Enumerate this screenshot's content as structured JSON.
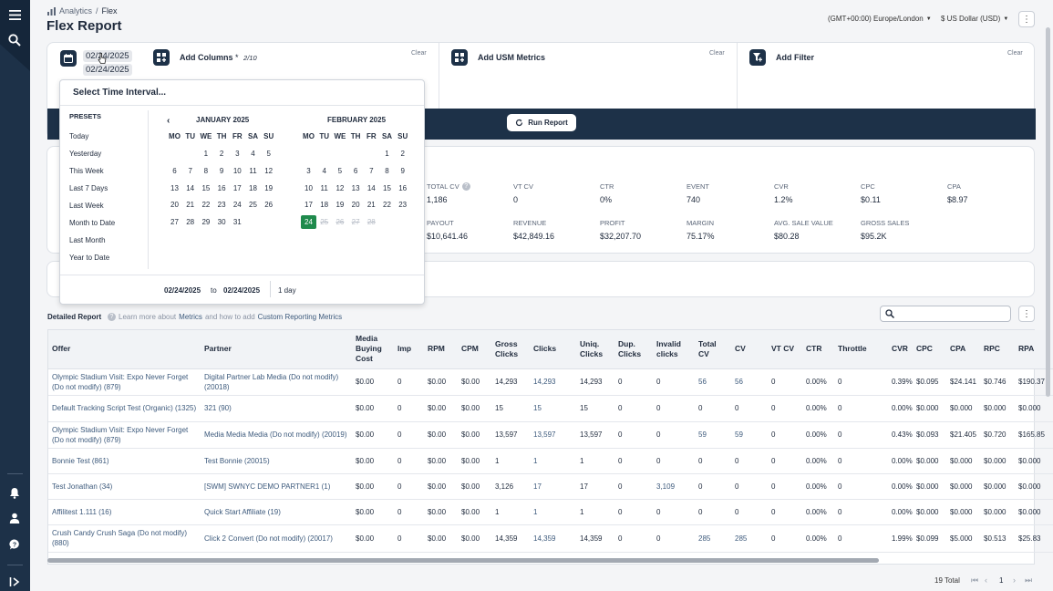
{
  "sidebar": {
    "icons": [
      "menu-icon",
      "search-icon",
      "bell-icon",
      "user-icon",
      "help-icon",
      "expand-icon"
    ]
  },
  "header": {
    "breadcrumb": [
      "Analytics",
      "Flex"
    ],
    "title": "Flex Report",
    "timezone": "(GMT+00:00) Europe/London",
    "currency": "$ US Dollar (USD)"
  },
  "config": {
    "date_start": "02/24/2025",
    "date_end": "02/24/2025",
    "add_columns": "Add Columns",
    "add_columns_req": "*",
    "add_columns_count": "2/10",
    "add_usm": "Add USM Metrics",
    "add_filter": "Add Filter",
    "clear": "Clear",
    "run_report": "Run Report"
  },
  "metrics": {
    "row1": [
      {
        "label": "TOTAL CV",
        "value": "1,186",
        "help": "?"
      },
      {
        "label": "VT CV",
        "value": "0"
      },
      {
        "label": "CTR",
        "value": "0%"
      },
      {
        "label": "EVENT",
        "value": "740"
      },
      {
        "label": "CVR",
        "value": "1.2%"
      },
      {
        "label": "CPC",
        "value": "$0.11"
      },
      {
        "label": "CPA",
        "value": "$8.97"
      }
    ],
    "row2": [
      {
        "label": "PAYOUT",
        "value": "$10,641.46"
      },
      {
        "label": "REVENUE",
        "value": "$42,849.16"
      },
      {
        "label": "PROFIT",
        "value": "$32,207.70"
      },
      {
        "label": "MARGIN",
        "value": "75.17%"
      },
      {
        "label": "AVG. SALE VALUE",
        "value": "$80.28"
      },
      {
        "label": "GROSS SALES",
        "value": "$95.2K"
      }
    ]
  },
  "report": {
    "title": "Detailed Report",
    "help_prefix": "Learn more about",
    "help_link1": "Metrics",
    "help_middle": "and how to add",
    "help_link2": "Custom Reporting Metrics",
    "search_placeholder": ""
  },
  "table": {
    "headers": [
      "Offer",
      "Partner",
      "Media Buying Cost",
      "Imp",
      "RPM",
      "CPM",
      "Gross Clicks",
      "Clicks",
      "Uniq. Clicks",
      "Dup. Clicks",
      "Invalid clicks",
      "Total CV",
      "CV",
      "VT CV",
      "CTR",
      "Throttle",
      "CVR",
      "CPC",
      "CPA",
      "RPC",
      "RPA"
    ],
    "rows": [
      [
        "Olympic Stadium Visit: Expo Never Forget (Do not modify) (879)",
        "Digital Partner Lab Media (Do not modify) (20018)",
        "$0.00",
        "0",
        "$0.00",
        "$0.00",
        "14,293",
        "14,293",
        "14,293",
        "0",
        "0",
        "56",
        "56",
        "0",
        "0.00%",
        "0",
        "0.39%",
        "$0.095",
        "$24.141",
        "$0.746",
        "$190.37"
      ],
      [
        "Default Tracking Script Test (Organic) (1325)",
        "321 (90)",
        "$0.00",
        "0",
        "$0.00",
        "$0.00",
        "15",
        "15",
        "15",
        "0",
        "0",
        "0",
        "0",
        "0",
        "0.00%",
        "0",
        "0.00%",
        "$0.000",
        "$0.000",
        "$0.000",
        "$0.000"
      ],
      [
        "Olympic Stadium Visit: Expo Never Forget (Do not modify) (879)",
        "Media Media Media (Do not modify) (20019)",
        "$0.00",
        "0",
        "$0.00",
        "$0.00",
        "13,597",
        "13,597",
        "13,597",
        "0",
        "0",
        "59",
        "59",
        "0",
        "0.00%",
        "0",
        "0.43%",
        "$0.093",
        "$21.405",
        "$0.720",
        "$165.85"
      ],
      [
        "Bonnie Test (861)",
        "Test Bonnie (20015)",
        "$0.00",
        "0",
        "$0.00",
        "$0.00",
        "1",
        "1",
        "1",
        "0",
        "0",
        "0",
        "0",
        "0",
        "0.00%",
        "0",
        "0.00%",
        "$0.000",
        "$0.000",
        "$0.000",
        "$0.000"
      ],
      [
        "Test Jonathan (34)",
        "[SWM] SWNYC DEMO PARTNER1 (1)",
        "$0.00",
        "0",
        "$0.00",
        "$0.00",
        "3,126",
        "17",
        "17",
        "0",
        "3,109",
        "0",
        "0",
        "0",
        "0.00%",
        "0",
        "0.00%",
        "$0.000",
        "$0.000",
        "$0.000",
        "$0.000"
      ],
      [
        "Affilitest 1.111 (16)",
        "Quick Start Affiliate (19)",
        "$0.00",
        "0",
        "$0.00",
        "$0.00",
        "1",
        "1",
        "1",
        "0",
        "0",
        "0",
        "0",
        "0",
        "0.00%",
        "0",
        "0.00%",
        "$0.000",
        "$0.000",
        "$0.000",
        "$0.000"
      ],
      [
        "Crush Candy Crush Saga (Do not modify) (880)",
        "Click 2 Convert (Do not modify) (20017)",
        "$0.00",
        "0",
        "$0.00",
        "$0.00",
        "14,359",
        "14,359",
        "14,359",
        "0",
        "0",
        "285",
        "285",
        "0",
        "0.00%",
        "0",
        "1.99%",
        "$0.099",
        "$5.000",
        "$0.513",
        "$25.83"
      ]
    ]
  },
  "footer": {
    "total": "19 Total",
    "page": "1"
  },
  "picker": {
    "title": "Select Time Interval...",
    "presets_head": "PRESETS",
    "presets": [
      "Today",
      "Yesterday",
      "This Week",
      "Last 7 Days",
      "Last Week",
      "Month to Date",
      "Last Month",
      "Year to Date"
    ],
    "month1": "JANUARY 2025",
    "month2": "FEBRUARY 2025",
    "dow": [
      "MO",
      "TU",
      "WE",
      "TH",
      "FR",
      "SA",
      "SU"
    ],
    "from": "02/24/2025",
    "to_word": "to",
    "to": "02/24/2025",
    "span": "1 day"
  }
}
